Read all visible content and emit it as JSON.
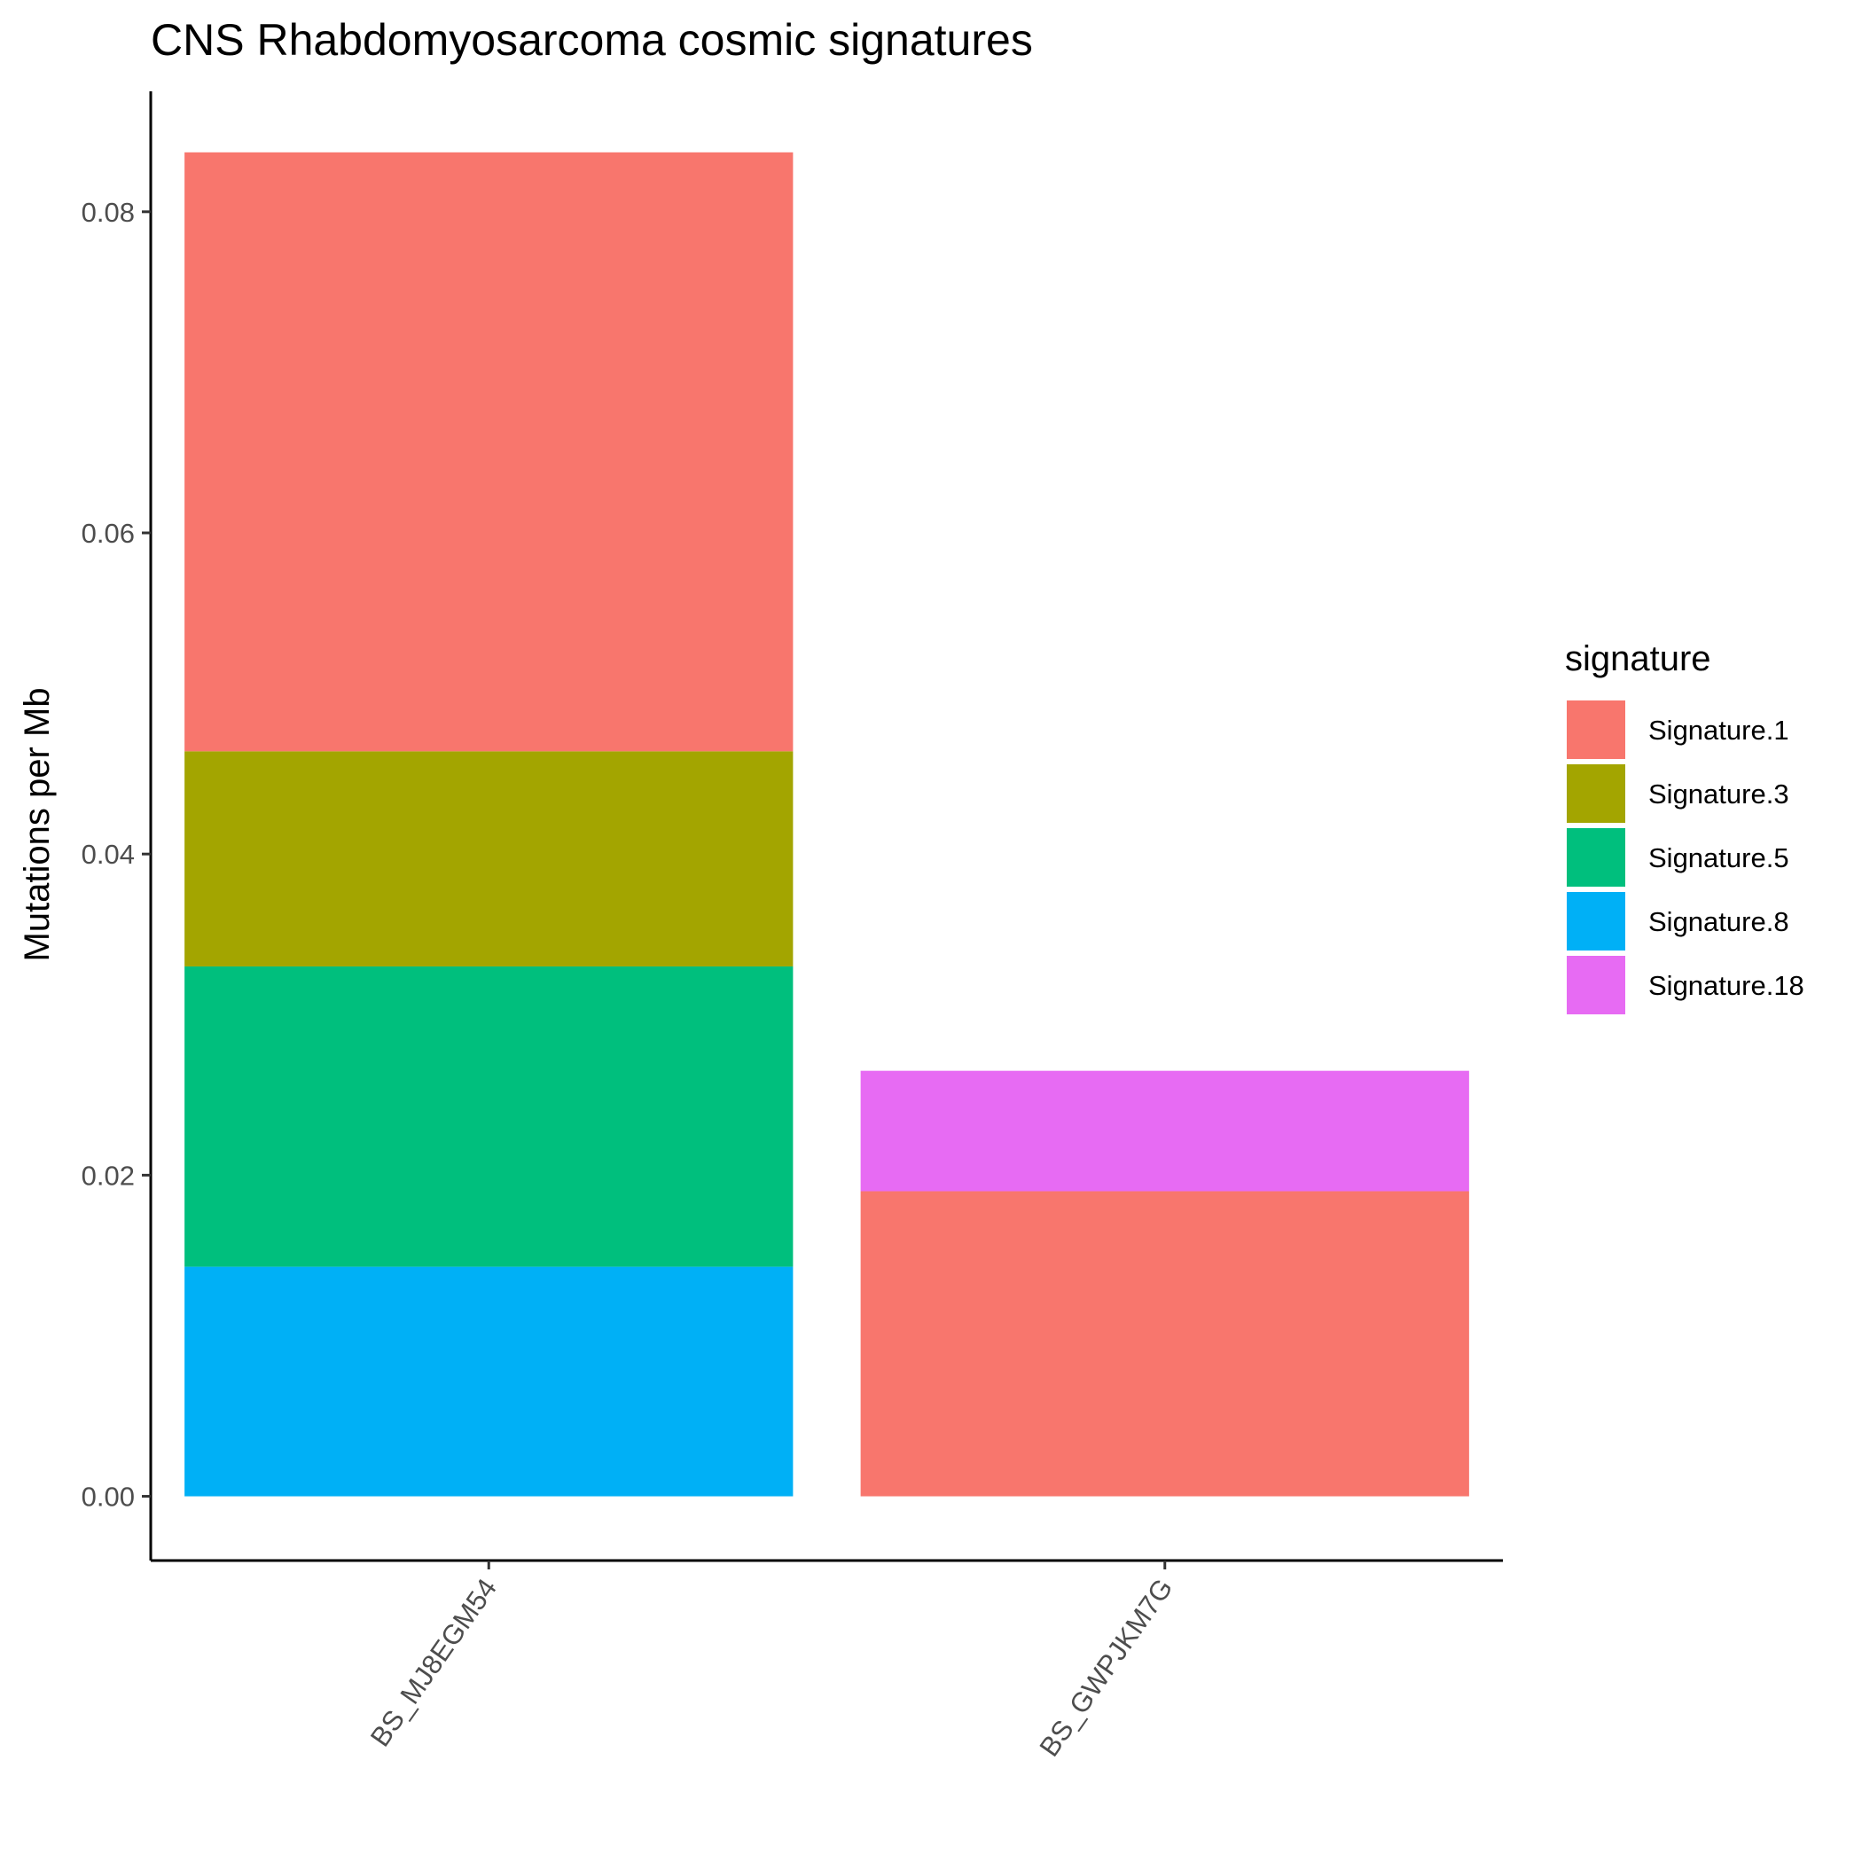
{
  "chart_data": {
    "type": "bar",
    "stacked": true,
    "title": "CNS Rhabdomyosarcoma cosmic signatures",
    "xlabel": "",
    "ylabel": "Mutations per Mb",
    "ylim": [
      -0.004,
      0.0875
    ],
    "yticks": [
      0.0,
      0.02,
      0.04,
      0.06,
      0.08
    ],
    "ytick_labels": [
      "0.00",
      "0.02",
      "0.04",
      "0.06",
      "0.08"
    ],
    "categories": [
      "BS_MJ8EGM54",
      "BS_GWPJKM7G"
    ],
    "series": [
      {
        "name": "Signature.8",
        "color": "#00B0F6",
        "values": [
          0.0143,
          0.0
        ]
      },
      {
        "name": "Signature.5",
        "color": "#00BF7D",
        "values": [
          0.0187,
          0.0
        ]
      },
      {
        "name": "Signature.3",
        "color": "#A3A500",
        "values": [
          0.0134,
          0.0
        ]
      },
      {
        "name": "Signature.1",
        "color": "#F8766D",
        "values": [
          0.0373,
          0.019
        ]
      },
      {
        "name": "Signature.18",
        "color": "#E76BF3",
        "values": [
          0.0,
          0.0075
        ]
      }
    ],
    "legend": {
      "title": "signature",
      "position": "right",
      "entries": [
        {
          "name": "Signature.1",
          "color": "#F8766D"
        },
        {
          "name": "Signature.3",
          "color": "#A3A500"
        },
        {
          "name": "Signature.5",
          "color": "#00BF7D"
        },
        {
          "name": "Signature.8",
          "color": "#00B0F6"
        },
        {
          "name": "Signature.18",
          "color": "#E76BF3"
        }
      ]
    },
    "grid": false
  }
}
